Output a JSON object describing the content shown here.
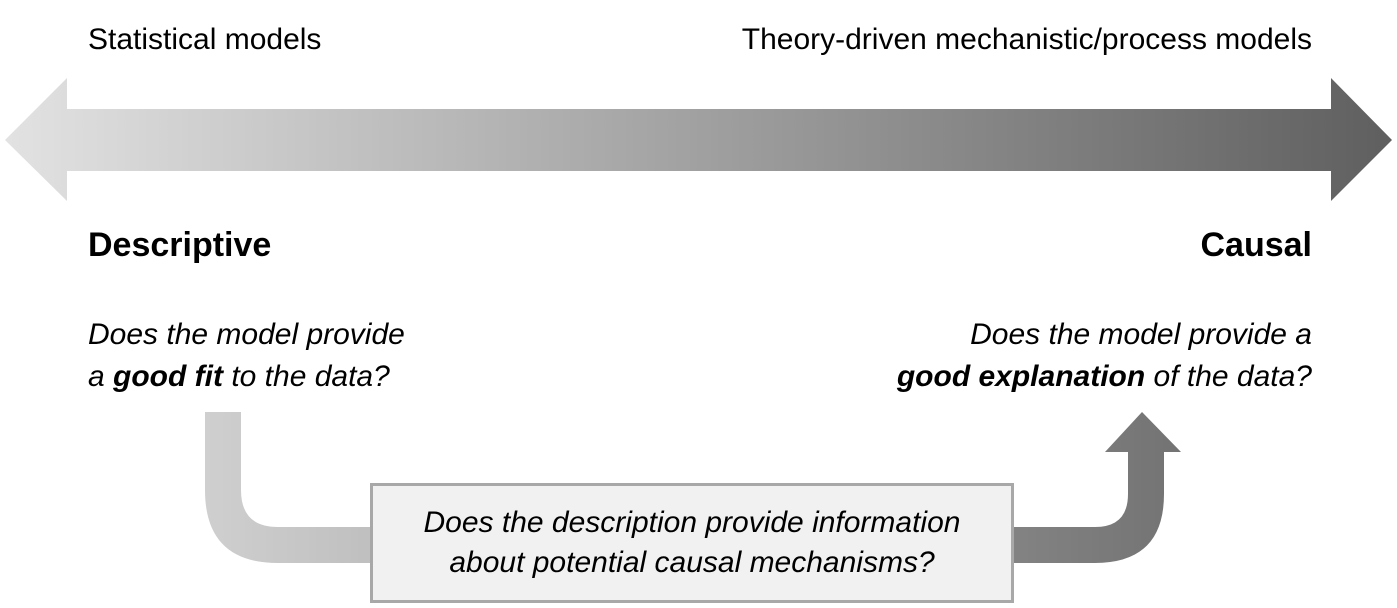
{
  "top_labels": {
    "left": "Statistical models",
    "right": "Theory-driven mechanistic/process models"
  },
  "poles": {
    "left": "Descriptive",
    "right": "Causal"
  },
  "questions": {
    "left": {
      "line1": "Does the model provide",
      "line2_pre": "a ",
      "line2_bold": "good fit",
      "line2_post": " to the data?"
    },
    "right": {
      "line1": "Does the model provide a",
      "line2_bold": "good explanation",
      "line2_post": " of the data?"
    }
  },
  "center_box": {
    "line1": "Does the description provide information",
    "line2": "about potential causal mechanisms?"
  },
  "colors": {
    "gradient_light": "#e2e2e2",
    "gradient_dark": "#5f5f5f",
    "box_fill": "#f1f1f1",
    "box_border": "#a8a8a8"
  }
}
